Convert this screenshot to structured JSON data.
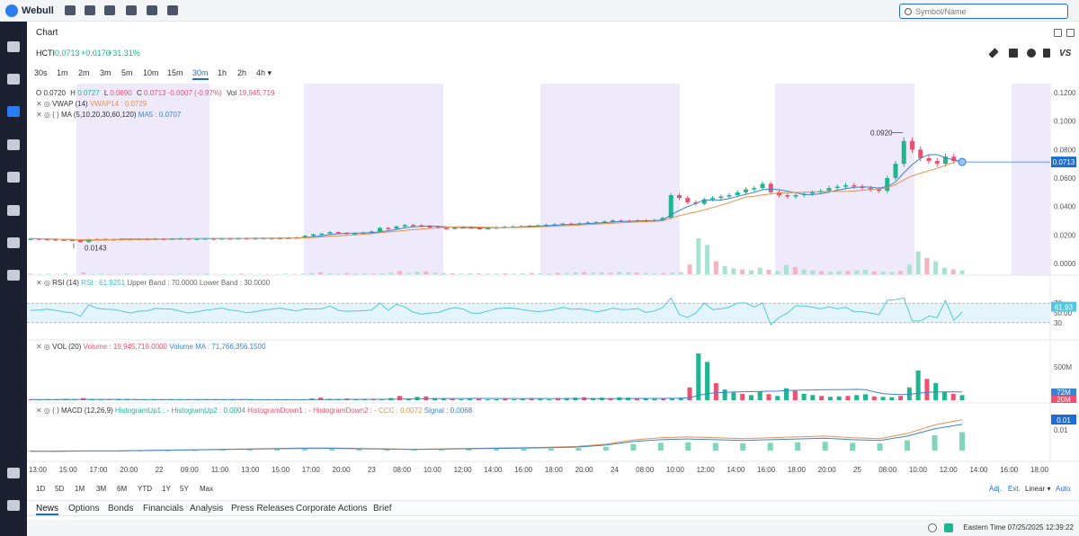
{
  "app": {
    "name": "Webull",
    "search_placeholder": "Symbol/Name"
  },
  "tabs": {
    "chart": "Chart"
  },
  "symbol": {
    "ticker": "HCTI",
    "price": "0.0713",
    "change": "+0.0170",
    "change_pct": "+31.31%"
  },
  "timeframes": [
    "30s",
    "1m",
    "2m",
    "3m",
    "5m",
    "10m",
    "15m",
    "30m",
    "1h",
    "2h",
    "4h ▾"
  ],
  "selected_timeframe_index": 7,
  "ohlc": {
    "o_label": "O",
    "o": "0.0720",
    "h_label": "H",
    "h": "0.0727",
    "l_label": "L",
    "l": "0.0690",
    "c_label": "C",
    "c": "0.0713",
    "chg": "-0.0007 (-0.97%)",
    "vol_label": "Vol",
    "vol": "19,945,719"
  },
  "indicators": {
    "vwap_name": "VWAP (14)",
    "vwap_value": "VWAP14 : 0.0729",
    "ma_name": "MA (5,10,20,30,60,120)",
    "ma_value": "MA5 : 0.0707",
    "rsi_name": "RSI (14)",
    "rsi_value": "RSI : 61.9251",
    "rsi_upper": "Upper Band : 70.0000",
    "rsi_lower": "Lower Band : 30.0000",
    "vol_name": "VOL (20)",
    "vol_value": "Volume : 19,945,719.0000",
    "vol_ma": "Volume MA : 71,766,356.1500",
    "macd_name": "MACD (12,26,9)",
    "macd_hu1": "HistogramUp1 : -",
    "macd_hu2": "HistogramUp2 : 0.0004",
    "macd_hd1": "HistogramDown1 : -",
    "macd_hd2": "HistogramDown2 : -",
    "macd_ccc": "CCC : 0.0072",
    "macd_signal": "Signal : 0.0068"
  },
  "annotations": {
    "high_label": "0.0920",
    "low_label": "0.0143",
    "last_price_tag": "0.0713",
    "rsi_tag": "61.93",
    "rsi_70": "70",
    "rsi_50": "50.00",
    "rsi_30": "30",
    "vol_axis": "500M",
    "vol_tag1": "72M",
    "vol_tag2": "20M",
    "macd_tag": "0.01",
    "macd_axis_top": "0.01"
  },
  "range_buttons": [
    "1D",
    "5D",
    "1M",
    "3M",
    "6M",
    "YTD",
    "1Y",
    "5Y",
    "Max"
  ],
  "scale_options": {
    "adj": "Adj.",
    "ext": "Ext.",
    "linear": "Linear ▾",
    "auto": "Auto"
  },
  "news_tabs": [
    "News",
    "Options",
    "Bonds",
    "Financials",
    "Analysis",
    "Press Releases",
    "Corporate Actions",
    "Brief"
  ],
  "status": {
    "time": "Eastern Time 07/25/2025 12:39:22"
  },
  "colors": {
    "up": "#1fb58f",
    "down": "#f0506e",
    "accent": "#1c6ed6",
    "session": "#efeafb",
    "ma5": "#e8924a",
    "ma10": "#3b82d4"
  },
  "chart_data": {
    "type": "candlestick",
    "y_axis": {
      "ticks": [
        "0.1200",
        "0.1000",
        "0.0800",
        "0.0600",
        "0.0400",
        "0.0200",
        "0.0000"
      ],
      "ylim": [
        0,
        0.12
      ]
    },
    "x_axis": {
      "ticks": [
        "13:00",
        "15:00",
        "17:00",
        "20:00",
        "22",
        "09:00",
        "11:00",
        "13:00",
        "15:00",
        "17:00",
        "20:00",
        "23",
        "08:00",
        "10:00",
        "12:00",
        "14:00",
        "16:00",
        "18:00",
        "20:00",
        "24",
        "08:00",
        "10:00",
        "12:00",
        "14:00",
        "16:00",
        "18:00",
        "20:00",
        "25",
        "08:00",
        "10:00",
        "12:00",
        "14:00",
        "16:00",
        "18:00"
      ]
    },
    "price_series": [
      0.0175,
      0.0172,
      0.017,
      0.0168,
      0.0166,
      0.0165,
      0.015,
      0.017,
      0.0172,
      0.017,
      0.0171,
      0.0172,
      0.017,
      0.0173,
      0.0172,
      0.0174,
      0.0173,
      0.0175,
      0.0176,
      0.0174,
      0.0175,
      0.0176,
      0.0175,
      0.0177,
      0.0176,
      0.0178,
      0.0177,
      0.0178,
      0.0179,
      0.0178,
      0.018,
      0.0181,
      0.0183,
      0.0195,
      0.0205,
      0.021,
      0.022,
      0.0215,
      0.021,
      0.0212,
      0.0218,
      0.0225,
      0.025,
      0.0245,
      0.026,
      0.027,
      0.0268,
      0.0262,
      0.0258,
      0.025,
      0.0248,
      0.0252,
      0.0255,
      0.025,
      0.0247,
      0.025,
      0.0255,
      0.0258,
      0.026,
      0.0262,
      0.0265,
      0.0268,
      0.0272,
      0.0275,
      0.028,
      0.0278,
      0.0282,
      0.0288,
      0.029,
      0.0295,
      0.0302,
      0.03,
      0.0298,
      0.0303,
      0.03,
      0.0305,
      0.032,
      0.048,
      0.046,
      0.043,
      0.042,
      0.045,
      0.046,
      0.047,
      0.048,
      0.05,
      0.052,
      0.053,
      0.056,
      0.05,
      0.048,
      0.047,
      0.048,
      0.049,
      0.05,
      0.051,
      0.053,
      0.054,
      0.055,
      0.054,
      0.053,
      0.052,
      0.051,
      0.06,
      0.07,
      0.086,
      0.08,
      0.074,
      0.072,
      0.07,
      0.075,
      0.072,
      0.0713
    ],
    "rsi_band": [
      30,
      70
    ],
    "volume_series": [
      2,
      1,
      2,
      1,
      3,
      1,
      5,
      1,
      2,
      1,
      1,
      2,
      1,
      2,
      1,
      1,
      1,
      2,
      1,
      1,
      2,
      1,
      1,
      1,
      2,
      1,
      1,
      1,
      1,
      2,
      1,
      2,
      4,
      6,
      3,
      2,
      4,
      2,
      3,
      2,
      3,
      5,
      10,
      4,
      8,
      9,
      5,
      4,
      3,
      2,
      3,
      3,
      2,
      2,
      3,
      2,
      3,
      4,
      3,
      2,
      5,
      4,
      6,
      7,
      5,
      6,
      5,
      7,
      6,
      5,
      4,
      3,
      4,
      5,
      6,
      30,
      110,
      90,
      40,
      25,
      18,
      15,
      12,
      20,
      14,
      10,
      28,
      22,
      15,
      12,
      10,
      8,
      9,
      10,
      12,
      14,
      9,
      8,
      7,
      10,
      30,
      70,
      50,
      40,
      20,
      15,
      12
    ],
    "macd_series": [
      -0.0002,
      -0.0002,
      -0.0001,
      -0.0001,
      0,
      0.0001,
      0.0002,
      0.0003,
      0.0004,
      0.0005,
      0.0006,
      0.0006,
      0.0005,
      0.0004,
      0.0003,
      0.0004,
      0.0005,
      0.0006,
      0.0007,
      0.0008,
      0.001,
      0.0015,
      0.0025,
      0.003,
      0.0032,
      0.003,
      0.0028,
      0.003,
      0.0032,
      0.0034,
      0.003,
      0.0028,
      0.004,
      0.006,
      0.0072
    ]
  }
}
